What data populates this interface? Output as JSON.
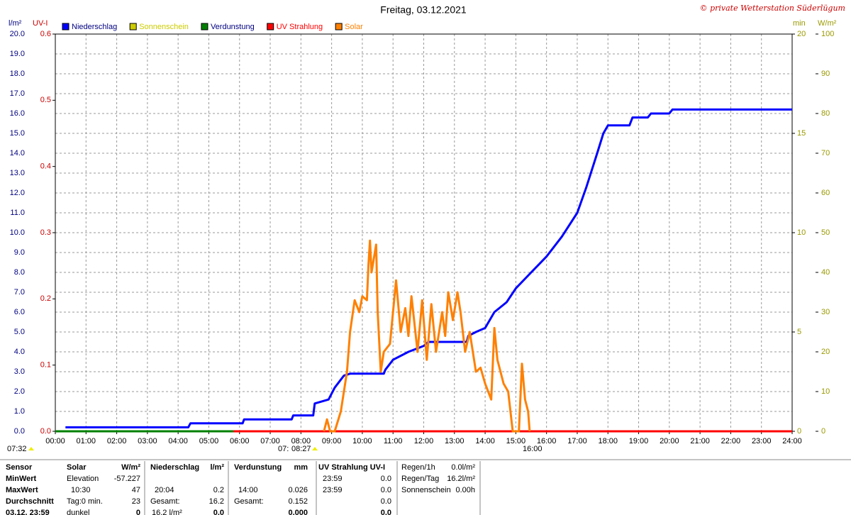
{
  "chart_data": {
    "type": "line",
    "title": "Freitag, 03.12.2021",
    "copyright": "© private Wetterstation Süderlügum",
    "y_label": "l/m²",
    "uv_label": "UV-I",
    "min_label": "min",
    "y2_label": "W/m²",
    "xlim": [
      0,
      24
    ],
    "xticks": [
      {
        "value": 0,
        "label": "00:00"
      },
      {
        "value": 1,
        "label": "01:00"
      },
      {
        "value": 2,
        "label": "02:00"
      },
      {
        "value": 3,
        "label": "03:00"
      },
      {
        "value": 4,
        "label": "04:00"
      },
      {
        "value": 5,
        "label": "05:00"
      },
      {
        "value": 6,
        "label": "06:00"
      },
      {
        "value": 7,
        "label": "07:00"
      },
      {
        "value": 8,
        "label": "08:00"
      },
      {
        "value": 9,
        "label": "09:00"
      },
      {
        "value": 10,
        "label": "10:00"
      },
      {
        "value": 11,
        "label": "11:00"
      },
      {
        "value": 12,
        "label": "12:00"
      },
      {
        "value": 13,
        "label": "13:00"
      },
      {
        "value": 14,
        "label": "14:00"
      },
      {
        "value": 15,
        "label": "15:00"
      },
      {
        "value": 16,
        "label": "16:00"
      },
      {
        "value": 17,
        "label": "17:00"
      },
      {
        "value": 18,
        "label": "18:00"
      },
      {
        "value": 19,
        "label": "19:00"
      },
      {
        "value": 20,
        "label": "20:00"
      },
      {
        "value": 21,
        "label": "21:00"
      },
      {
        "value": 22,
        "label": "22:00"
      },
      {
        "value": 23,
        "label": "23:00"
      },
      {
        "value": 24,
        "label": "24:00"
      }
    ],
    "ylim": [
      0,
      20
    ],
    "yticks": [
      {
        "value": 0,
        "label": "0.0"
      },
      {
        "value": 1,
        "label": "1.0"
      },
      {
        "value": 2,
        "label": "2.0"
      },
      {
        "value": 3,
        "label": "3.0"
      },
      {
        "value": 4,
        "label": "4.0"
      },
      {
        "value": 5,
        "label": "5.0"
      },
      {
        "value": 6,
        "label": "6.0"
      },
      {
        "value": 7,
        "label": "7.0"
      },
      {
        "value": 8,
        "label": "8.0"
      },
      {
        "value": 9,
        "label": "9.0"
      },
      {
        "value": 10,
        "label": "10.0"
      },
      {
        "value": 11,
        "label": "11.0"
      },
      {
        "value": 12,
        "label": "12.0"
      },
      {
        "value": 13,
        "label": "13.0"
      },
      {
        "value": 14,
        "label": "14.0"
      },
      {
        "value": 15,
        "label": "15.0"
      },
      {
        "value": 16,
        "label": "16.0"
      },
      {
        "value": 17,
        "label": "17.0"
      },
      {
        "value": 18,
        "label": "18.0"
      },
      {
        "value": 19,
        "label": "19.0"
      },
      {
        "value": 20,
        "label": "20.0"
      }
    ],
    "uv_ylim": [
      0,
      0.6
    ],
    "uv_yticks": [
      {
        "value": 0,
        "label": "0.0"
      },
      {
        "value": 0.1,
        "label": "0.1"
      },
      {
        "value": 0.2,
        "label": "0.2"
      },
      {
        "value": 0.3,
        "label": "0.3"
      },
      {
        "value": 0.4,
        "label": "0.4"
      },
      {
        "value": 0.5,
        "label": "0.5"
      },
      {
        "value": 0.6,
        "label": "0.6"
      }
    ],
    "min_ylim": [
      0,
      20
    ],
    "min_yticks": [
      0,
      5,
      10,
      15,
      20
    ],
    "y2lim": [
      0,
      100
    ],
    "y2ticks": [
      0,
      10,
      20,
      30,
      40,
      50,
      60,
      70,
      80,
      90,
      100
    ],
    "grid": true,
    "series": [
      {
        "name": "Niederschlag",
        "color": "#0000ff",
        "axis": "y",
        "x": [
          0.33,
          4.33,
          4.4,
          6.1,
          6.15,
          7.7,
          7.75,
          8.4,
          8.45,
          8.9,
          9.1,
          9.4,
          9.6,
          10.7,
          10.75,
          11.0,
          11.5,
          12.0,
          12.15,
          13.4,
          13.45,
          13.7,
          14.0,
          14.3,
          14.7,
          15.0,
          15.5,
          16.0,
          16.5,
          17.0,
          17.3,
          17.65,
          17.85,
          18.0,
          18.7,
          18.8,
          19.3,
          19.4,
          20.0,
          20.1,
          24.0
        ],
        "values": [
          0.2,
          0.2,
          0.4,
          0.4,
          0.6,
          0.6,
          0.8,
          0.8,
          1.4,
          1.6,
          2.2,
          2.8,
          2.9,
          2.9,
          3.1,
          3.6,
          4.0,
          4.3,
          4.5,
          4.5,
          4.8,
          5.0,
          5.2,
          6.0,
          6.5,
          7.2,
          8.0,
          8.8,
          9.8,
          11.0,
          12.3,
          14.0,
          15.0,
          15.4,
          15.4,
          15.8,
          15.8,
          16.0,
          16.0,
          16.2,
          16.2
        ]
      },
      {
        "name": "Sonnenschein",
        "color": "#cccc00",
        "axis": "min",
        "x": [],
        "values": []
      },
      {
        "name": "Verdunstung",
        "color": "#008000",
        "axis": "y",
        "x": [
          0,
          5.8
        ],
        "values": [
          0,
          0
        ]
      },
      {
        "name": "UV Strahlung",
        "color": "#ff0000",
        "axis": "uv",
        "x": [
          5.8,
          24
        ],
        "values": [
          0,
          0
        ]
      },
      {
        "name": "Solar",
        "color": "#ff8000",
        "axis": "y2",
        "x": [
          8.75,
          8.85,
          8.95,
          9.1,
          9.3,
          9.5,
          9.6,
          9.75,
          9.9,
          10.0,
          10.15,
          10.2,
          10.25,
          10.3,
          10.45,
          10.5,
          10.6,
          10.7,
          10.9,
          11.0,
          11.1,
          11.25,
          11.4,
          11.5,
          11.6,
          11.8,
          11.95,
          12.1,
          12.25,
          12.4,
          12.6,
          12.7,
          12.8,
          12.95,
          13.1,
          13.2,
          13.35,
          13.5,
          13.7,
          13.85,
          14.0,
          14.2,
          14.3,
          14.4,
          14.6,
          14.75,
          14.9,
          15.1,
          15.2,
          15.3,
          15.4,
          15.45
        ],
        "values": [
          0,
          3,
          0,
          0,
          5,
          15,
          25,
          33,
          30,
          34,
          33,
          42,
          48,
          40,
          47,
          30,
          15,
          20,
          22,
          30,
          38,
          25,
          31,
          24,
          34,
          20,
          33,
          18,
          32,
          20,
          30,
          24,
          35,
          28,
          35,
          30,
          20,
          25,
          15,
          16,
          12,
          8,
          26,
          18,
          12,
          10,
          0,
          0,
          17,
          8,
          5,
          0
        ]
      }
    ],
    "markers": [
      "07:32",
      "07:",
      "08:27",
      "16:00"
    ]
  },
  "stats": {
    "row_labels": [
      "Sensor",
      "MinWert",
      "MaxWert",
      "Durchschnitt",
      "03.12. 23:59"
    ],
    "solar": {
      "title": "Solar",
      "unit": "W/m²",
      "min_label": "Elevation",
      "min": "-57.227",
      "max_time": "10:30",
      "max": "47",
      "avg_label": "Tag:0 min.",
      "avg": "23",
      "now_label": "dunkel",
      "now": "0"
    },
    "niederschlag": {
      "title": "Niederschlag",
      "unit": "l/m²",
      "max_time": "20:04",
      "max": "0.2",
      "avg_label": "Gesamt:",
      "avg": "16.2",
      "now_label": "16.2 l/m²",
      "now": "0.0"
    },
    "verdunstung": {
      "title": "Verdunstung",
      "unit": "mm",
      "max_time": "14:00",
      "max": "0.026",
      "avg_label": "Gesamt:",
      "avg": "0.152",
      "now": "0.000"
    },
    "uv": {
      "title": "UV Strahlung UV-I",
      "min_time": "23:59",
      "min": "0.0",
      "max_time": "23:59",
      "max": "0.0",
      "avg": "0.0",
      "now": "0.0"
    },
    "regen": {
      "rain_1h_label": "Regen/1h",
      "rain_1h": "0.0l/m²",
      "rain_day_label": "Regen/Tag",
      "rain_day": "16.2l/m²",
      "sunshine_label": "Sonnenschein",
      "sunshine": "0.00h"
    }
  }
}
